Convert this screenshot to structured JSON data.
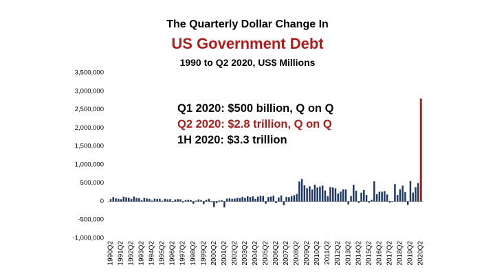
{
  "chart_data": {
    "type": "bar",
    "title": [
      "The Quarterly Dollar Change In",
      "US Government Debt"
    ],
    "subtitle": "1990 to Q2 2020, US$ Millions",
    "y_tick_labels": [
      "3,500,000",
      "3,000,000",
      "2,500,000",
      "2,000,000",
      "1,500,000",
      "1,000,000",
      "500,000",
      "0",
      "-500,000",
      "-1,000,000"
    ],
    "ylim": [
      -1000000,
      3500000
    ],
    "x_tick_labels": [
      "1990Q2",
      "1991Q2",
      "1992Q2",
      "1993Q2",
      "1994Q2",
      "1995Q2",
      "1996Q2",
      "1997Q2",
      "1998Q2",
      "1999Q2",
      "2000Q2",
      "2001Q2",
      "2002Q2",
      "2003Q2",
      "2004Q2",
      "2005Q2",
      "2006Q2",
      "2007Q2",
      "2008Q2",
      "2009Q2",
      "2010Q2",
      "2011Q2",
      "2012Q2",
      "2013Q2",
      "2014Q2",
      "2015Q2",
      "2016Q2",
      "2017Q2",
      "2018Q2",
      "2019Q2",
      "2020Q2"
    ],
    "series": [
      {
        "values": [
          62000,
          118000,
          84000,
          71000,
          58000,
          126000,
          112000,
          104000,
          63000,
          131000,
          96000,
          88000,
          35000,
          97000,
          81000,
          68000,
          22000,
          76000,
          64000,
          71000,
          18000,
          69000,
          58000,
          62000,
          -12000,
          54000,
          61000,
          57000,
          -28000,
          38000,
          49000,
          43000,
          -64000,
          21000,
          56000,
          38000,
          -72000,
          44000,
          71000,
          -19000,
          -154000,
          -45000,
          24000,
          36000,
          -165000,
          78000,
          84000,
          67000,
          74000,
          101000,
          93000,
          124000,
          98000,
          142000,
          115000,
          138000,
          71000,
          129000,
          152000,
          148000,
          -63000,
          118000,
          131000,
          157000,
          -46000,
          109000,
          163000,
          -101000,
          124000,
          115000,
          147000,
          168000,
          204000,
          541000,
          612000,
          436000,
          358000,
          412000,
          322000,
          455000,
          377000,
          406000,
          432000,
          296000,
          142000,
          394000,
          378000,
          356000,
          218000,
          268000,
          331000,
          326000,
          -81000,
          145000,
          453000,
          292000,
          -42000,
          238000,
          312000,
          174000,
          -36000,
          48000,
          546000,
          197000,
          263000,
          264000,
          282000,
          187000,
          -35000,
          -12000,
          470000,
          175000,
          330000,
          430000,
          250000,
          -95000,
          555000,
          240000,
          385000,
          500000,
          2800000
        ]
      }
    ],
    "grid": false,
    "legend": false,
    "annotations": [
      {
        "text": "Q1 2020: $500 billion, Q on Q",
        "color": "#000000"
      },
      {
        "text": "Q2 2020: $2.8 trillion, Q on Q",
        "color": "#a81e1a"
      },
      {
        "text": "1H 2020: $3.3 trillion",
        "color": "#000000"
      }
    ]
  },
  "colors": {
    "bars": "#1f3864",
    "latest_bar": "#b01c1c",
    "title_accent": "#b01c1c",
    "axis_line": "#9a9a9a"
  }
}
